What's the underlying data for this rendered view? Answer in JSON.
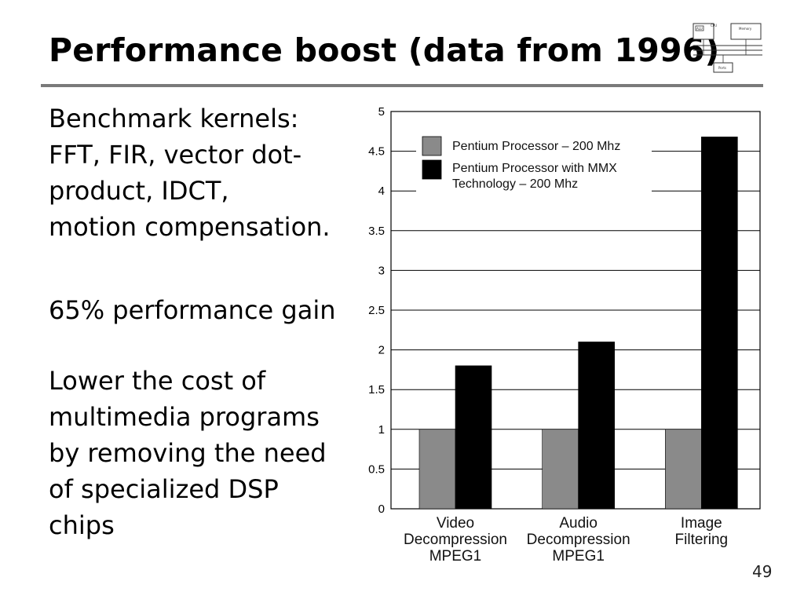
{
  "slide": {
    "title": "Performance boost (data from 1996)",
    "bullets": [
      {
        "lines": [
          "Benchmark kernels:",
          "FFT, FIR, vector dot-",
          "product, IDCT,",
          "motion compensation."
        ]
      },
      {
        "lines": [
          "65% performance gain"
        ]
      },
      {
        "lines": [
          "Lower the cost of",
          "multimedia programs",
          "by removing the need",
          "of specialized DSP",
          "chips"
        ]
      }
    ],
    "page_number": "49"
  },
  "logo": {
    "labels": [
      "ALU",
      "CPU",
      "Memory",
      "Ports"
    ]
  },
  "chart_data": {
    "type": "bar",
    "categories": [
      [
        "Video",
        "Decompression",
        "MPEG1"
      ],
      [
        "Audio",
        "Decompression",
        "MPEG1"
      ],
      [
        "Image",
        "Filtering"
      ]
    ],
    "series": [
      {
        "name": "Pentium Processor – 200 Mhz",
        "values": [
          1,
          1,
          1
        ],
        "color": "#8a8a8a"
      },
      {
        "name": "Pentium Processor with MMX Technology – 200 Mhz",
        "values": [
          1.8,
          2.1,
          4.68
        ],
        "color": "#000000"
      }
    ],
    "yticks": [
      "0",
      "0.5",
      "1",
      "1.5",
      "2",
      "2.5",
      "3",
      "3.5",
      "4",
      "4.5",
      "5"
    ],
    "ylim": [
      0,
      5
    ],
    "grid": true,
    "legend_position": "top-left"
  }
}
